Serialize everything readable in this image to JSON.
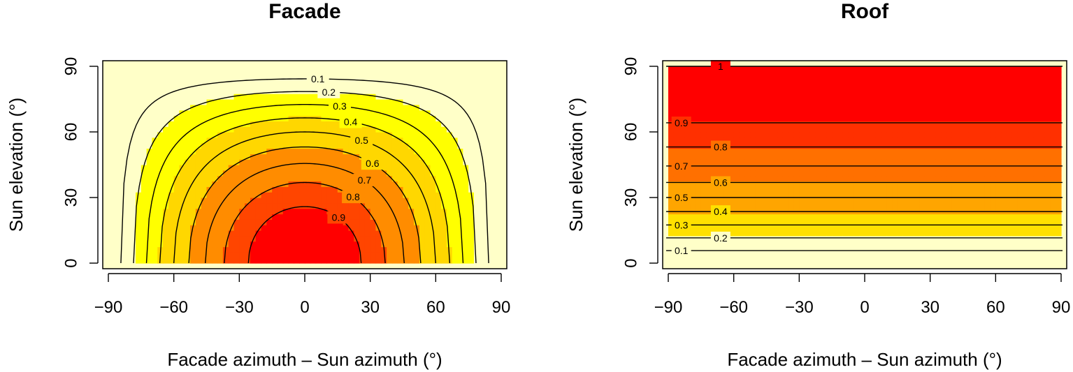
{
  "chart_data": [
    {
      "type": "heatmap",
      "title": "Facade",
      "xlabel": "Facade azimuth – Sun azimuth (°)",
      "ylabel": "Sun elevation (°)",
      "xlim": [
        -90,
        90
      ],
      "ylim": [
        0,
        90
      ],
      "xticks": [
        "−90",
        "−60",
        "−30",
        "0",
        "30",
        "60",
        "90"
      ],
      "xtick_values": [
        -90,
        -60,
        -30,
        0,
        30,
        60,
        90
      ],
      "yticks": [
        "0",
        "30",
        "60",
        "90"
      ],
      "ytick_values": [
        0,
        30,
        60,
        90
      ],
      "value_function": "cos(elevation) * cos(azimuth difference)",
      "contour_levels": [
        0.1,
        0.2,
        0.3,
        0.4,
        0.5,
        0.6,
        0.7,
        0.8,
        0.9
      ],
      "contour_labels": [
        "0.1",
        "0.2",
        "0.3",
        "0.4",
        "0.5",
        "0.6",
        "0.7",
        "0.8",
        "0.9"
      ],
      "color_bands": [
        {
          "min": 0.0,
          "max": 0.2,
          "color": "#FFFFC8"
        },
        {
          "min": 0.2,
          "max": 0.4,
          "color": "#FFFF00"
        },
        {
          "min": 0.4,
          "max": 0.6,
          "color": "#FFD700"
        },
        {
          "min": 0.6,
          "max": 0.8,
          "color": "#FF8C00"
        },
        {
          "min": 0.8,
          "max": 0.9,
          "color": "#FF4500"
        },
        {
          "min": 0.9,
          "max": 1.0,
          "color": "#FF0000"
        }
      ],
      "grid": false,
      "legend": "none"
    },
    {
      "type": "heatmap",
      "title": "Roof",
      "xlabel": "Facade azimuth – Sun azimuth (°)",
      "ylabel": "Sun elevation (°)",
      "xlim": [
        -90,
        90
      ],
      "ylim": [
        0,
        90
      ],
      "xticks": [
        "−90",
        "−60",
        "−30",
        "0",
        "30",
        "60",
        "90"
      ],
      "xtick_values": [
        -90,
        -60,
        -30,
        0,
        30,
        60,
        90
      ],
      "yticks": [
        "0",
        "30",
        "60",
        "90"
      ],
      "ytick_values": [
        0,
        30,
        60,
        90
      ],
      "value_function": "sin(elevation)",
      "contour_levels": [
        0.1,
        0.2,
        0.3,
        0.4,
        0.5,
        0.6,
        0.7,
        0.8,
        0.9,
        1.0
      ],
      "contour_labels": [
        "0.1",
        "0.2",
        "0.3",
        "0.4",
        "0.5",
        "0.6",
        "0.7",
        "0.8",
        "0.9",
        "1"
      ],
      "color_bands": [
        {
          "min": 0.0,
          "max": 0.2,
          "color": "#FFFFC8"
        },
        {
          "min": 0.2,
          "max": 0.4,
          "color": "#FFE000"
        },
        {
          "min": 0.4,
          "max": 0.6,
          "color": "#FFA500"
        },
        {
          "min": 0.6,
          "max": 0.8,
          "color": "#FF7000"
        },
        {
          "min": 0.8,
          "max": 0.9,
          "color": "#FF3000"
        },
        {
          "min": 0.9,
          "max": 1.0,
          "color": "#FF0000"
        }
      ],
      "grid": false,
      "legend": "none"
    }
  ]
}
